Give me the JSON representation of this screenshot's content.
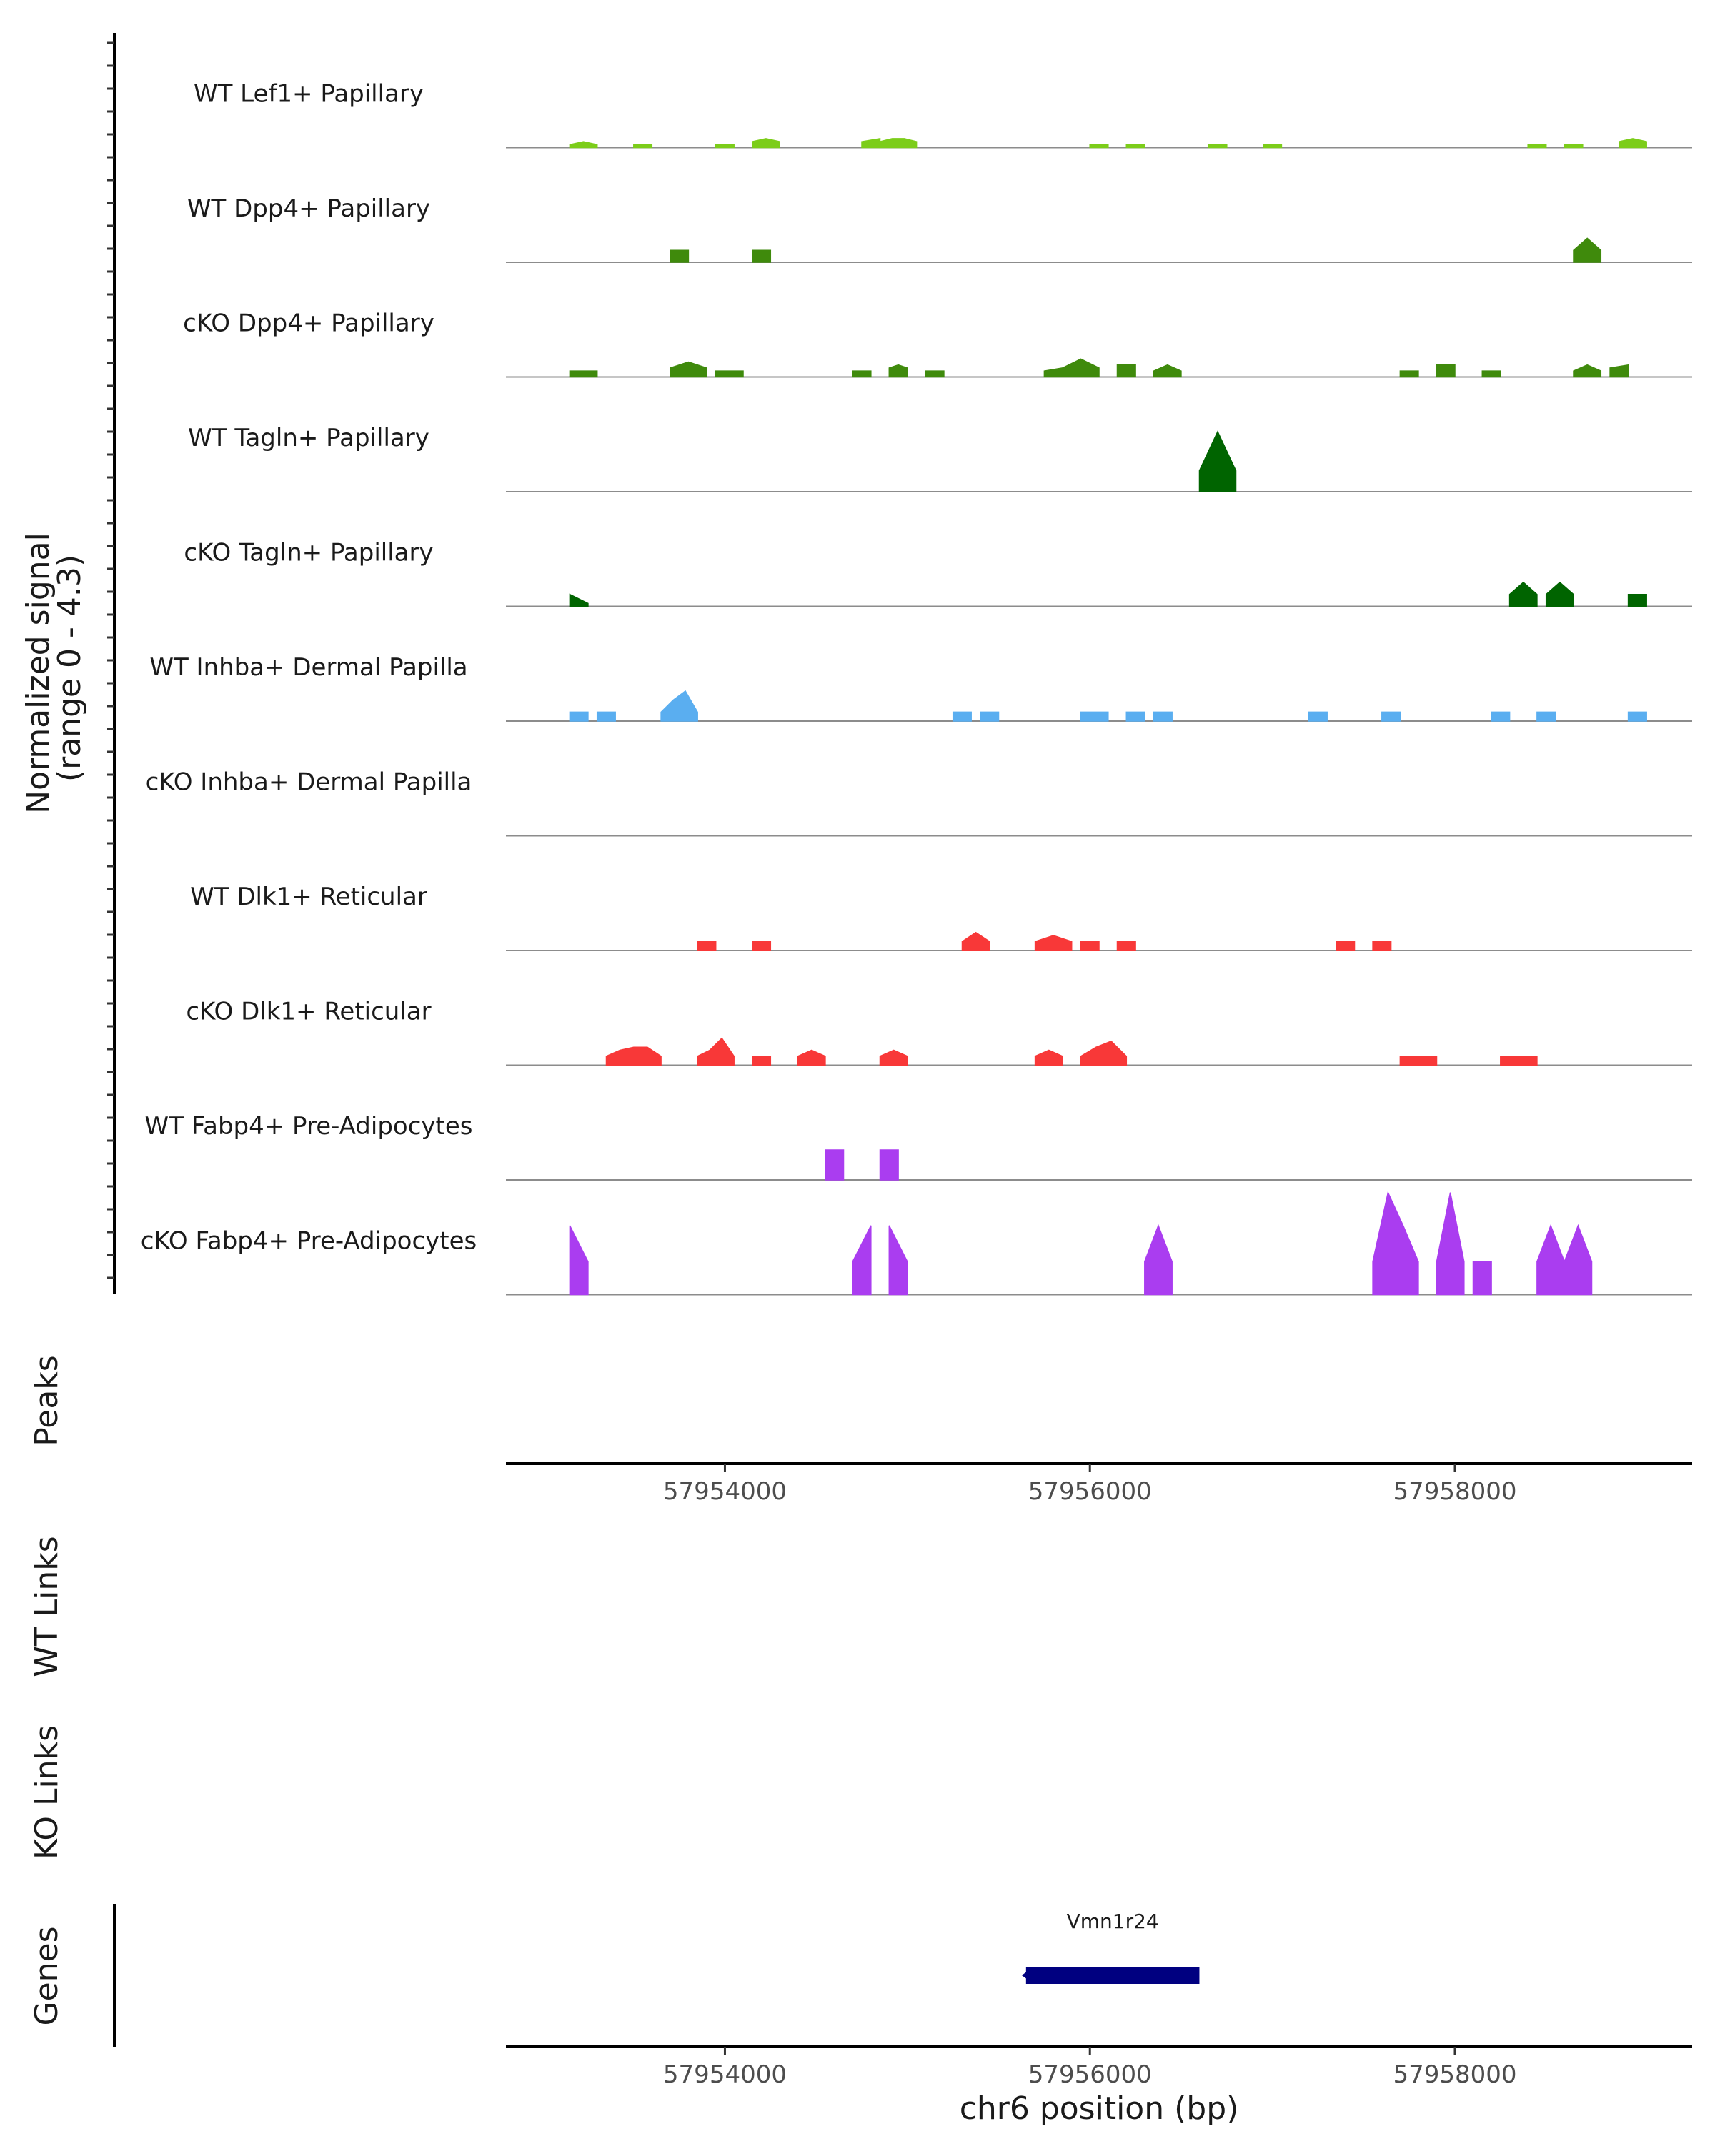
{
  "chart_data": {
    "type": "area",
    "ylabel_line1": "Normalized signal",
    "ylabel_line2": "(range 0 - 4.3)",
    "ylim": [
      0,
      4.3
    ],
    "xlim": [
      57952800,
      57959300
    ],
    "xlabel": "chr6 position (bp)",
    "xticks": [
      57954000,
      57956000,
      57958000
    ],
    "xtick_labels": [
      "57954000",
      "57956000",
      "57958000"
    ],
    "panel_labels": {
      "peaks": "Peaks",
      "wt_links": "WT Links",
      "ko_links": "KO Links",
      "genes": "Genes"
    },
    "genes": [
      {
        "name": "Vmn1r24",
        "start": 57955650,
        "end": 57956600,
        "strand": "-"
      }
    ],
    "series": [
      {
        "name": "WT Lef1+ Papillary",
        "color": "#7ccd1a",
        "regions": [
          {
            "start": 57953150,
            "end": 57953300,
            "values": [
              0.1,
              0.2,
              0.1
            ]
          },
          {
            "start": 57953500,
            "end": 57953600,
            "values": [
              0.1,
              0.1
            ]
          },
          {
            "start": 57953950,
            "end": 57954050,
            "values": [
              0.1,
              0.1
            ]
          },
          {
            "start": 57954150,
            "end": 57954300,
            "values": [
              0.2,
              0.3,
              0.2
            ]
          },
          {
            "start": 57954750,
            "end": 57954850,
            "values": [
              0.2,
              0.3
            ]
          },
          {
            "start": 57954850,
            "end": 57955050,
            "values": [
              0.2,
              0.3,
              0.3,
              0.2
            ]
          },
          {
            "start": 57956000,
            "end": 57956100,
            "values": [
              0.1,
              0.1
            ]
          },
          {
            "start": 57956200,
            "end": 57956300,
            "values": [
              0.1,
              0.1
            ]
          },
          {
            "start": 57956650,
            "end": 57956750,
            "values": [
              0.1,
              0.1
            ]
          },
          {
            "start": 57956950,
            "end": 57957050,
            "values": [
              0.1,
              0.1
            ]
          },
          {
            "start": 57958400,
            "end": 57958500,
            "values": [
              0.1,
              0.1
            ]
          },
          {
            "start": 57958600,
            "end": 57958700,
            "values": [
              0.1,
              0.1
            ]
          },
          {
            "start": 57958900,
            "end": 57959050,
            "values": [
              0.2,
              0.3,
              0.2
            ]
          }
        ]
      },
      {
        "name": "WT Dpp4+ Papillary",
        "color": "#3f8a0c",
        "regions": [
          {
            "start": 57953700,
            "end": 57953800,
            "values": [
              0.4,
              0.4
            ]
          },
          {
            "start": 57954150,
            "end": 57954250,
            "values": [
              0.4,
              0.4
            ]
          },
          {
            "start": 57958650,
            "end": 57958800,
            "values": [
              0.4,
              0.8,
              0.4
            ]
          }
        ]
      },
      {
        "name": "cKO Dpp4+ Papillary",
        "color": "#3f8a0c",
        "regions": [
          {
            "start": 57953150,
            "end": 57953300,
            "values": [
              0.2,
              0.2
            ]
          },
          {
            "start": 57953700,
            "end": 57953900,
            "values": [
              0.3,
              0.5,
              0.3
            ]
          },
          {
            "start": 57953950,
            "end": 57954100,
            "values": [
              0.2,
              0.2
            ]
          },
          {
            "start": 57954700,
            "end": 57954800,
            "values": [
              0.2,
              0.2
            ]
          },
          {
            "start": 57954900,
            "end": 57955000,
            "values": [
              0.3,
              0.4,
              0.3
            ]
          },
          {
            "start": 57955100,
            "end": 57955200,
            "values": [
              0.2,
              0.2
            ]
          },
          {
            "start": 57955750,
            "end": 57956050,
            "values": [
              0.2,
              0.3,
              0.6,
              0.3
            ]
          },
          {
            "start": 57956150,
            "end": 57956250,
            "values": [
              0.4,
              0.4
            ]
          },
          {
            "start": 57956350,
            "end": 57956500,
            "values": [
              0.2,
              0.4,
              0.2
            ]
          },
          {
            "start": 57957700,
            "end": 57957800,
            "values": [
              0.2,
              0.2
            ]
          },
          {
            "start": 57957900,
            "end": 57958000,
            "values": [
              0.4,
              0.4
            ]
          },
          {
            "start": 57958150,
            "end": 57958250,
            "values": [
              0.2,
              0.2
            ]
          },
          {
            "start": 57958650,
            "end": 57958800,
            "values": [
              0.2,
              0.4,
              0.2
            ]
          },
          {
            "start": 57958850,
            "end": 57958950,
            "values": [
              0.3,
              0.4
            ]
          }
        ]
      },
      {
        "name": "WT Tagln+ Papillary",
        "color": "#006400",
        "regions": [
          {
            "start": 57956600,
            "end": 57956800,
            "values": [
              0.7,
              2.0,
              0.7
            ]
          }
        ]
      },
      {
        "name": "cKO Tagln+ Papillary",
        "color": "#006400",
        "regions": [
          {
            "start": 57953150,
            "end": 57953250,
            "values": [
              0.4,
              0.1
            ]
          },
          {
            "start": 57958300,
            "end": 57958450,
            "values": [
              0.4,
              0.8,
              0.4
            ]
          },
          {
            "start": 57958500,
            "end": 57958650,
            "values": [
              0.4,
              0.8,
              0.4
            ]
          },
          {
            "start": 57958950,
            "end": 57959050,
            "values": [
              0.4,
              0.4
            ]
          }
        ]
      },
      {
        "name": "WT Inhba+ Dermal Papilla",
        "color": "#5aaef0",
        "regions": [
          {
            "start": 57953150,
            "end": 57953250,
            "values": [
              0.3,
              0.3
            ]
          },
          {
            "start": 57953300,
            "end": 57953400,
            "values": [
              0.3,
              0.3
            ]
          },
          {
            "start": 57953650,
            "end": 57953850,
            "values": [
              0.3,
              0.7,
              1.0,
              0.3
            ]
          },
          {
            "start": 57955250,
            "end": 57955350,
            "values": [
              0.3,
              0.3
            ]
          },
          {
            "start": 57955400,
            "end": 57955500,
            "values": [
              0.3,
              0.3
            ]
          },
          {
            "start": 57955950,
            "end": 57956100,
            "values": [
              0.3,
              0.3
            ]
          },
          {
            "start": 57956200,
            "end": 57956300,
            "values": [
              0.3,
              0.3
            ]
          },
          {
            "start": 57956350,
            "end": 57956450,
            "values": [
              0.3,
              0.3
            ]
          },
          {
            "start": 57957200,
            "end": 57957300,
            "values": [
              0.3,
              0.3
            ]
          },
          {
            "start": 57957600,
            "end": 57957700,
            "values": [
              0.3,
              0.3
            ]
          },
          {
            "start": 57958200,
            "end": 57958300,
            "values": [
              0.3,
              0.3
            ]
          },
          {
            "start": 57958450,
            "end": 57958550,
            "values": [
              0.3,
              0.3
            ]
          },
          {
            "start": 57958950,
            "end": 57959050,
            "values": [
              0.3,
              0.3
            ]
          }
        ]
      },
      {
        "name": "cKO Inhba+ Dermal Papilla",
        "color": "#5aaef0",
        "regions": []
      },
      {
        "name": "WT Dlk1+ Reticular",
        "color": "#f83838",
        "regions": [
          {
            "start": 57953850,
            "end": 57953950,
            "values": [
              0.3,
              0.3
            ]
          },
          {
            "start": 57954150,
            "end": 57954250,
            "values": [
              0.3,
              0.3
            ]
          },
          {
            "start": 57955300,
            "end": 57955450,
            "values": [
              0.3,
              0.6,
              0.3
            ]
          },
          {
            "start": 57955700,
            "end": 57955900,
            "values": [
              0.3,
              0.5,
              0.3
            ]
          },
          {
            "start": 57955950,
            "end": 57956050,
            "values": [
              0.3,
              0.3
            ]
          },
          {
            "start": 57956150,
            "end": 57956250,
            "values": [
              0.3,
              0.3
            ]
          },
          {
            "start": 57957350,
            "end": 57957450,
            "values": [
              0.3,
              0.3
            ]
          },
          {
            "start": 57957550,
            "end": 57957650,
            "values": [
              0.3,
              0.3
            ]
          }
        ]
      },
      {
        "name": "cKO Dlk1+ Reticular",
        "color": "#f83838",
        "regions": [
          {
            "start": 57953350,
            "end": 57953650,
            "values": [
              0.3,
              0.5,
              0.6,
              0.6,
              0.3
            ]
          },
          {
            "start": 57953850,
            "end": 57954050,
            "values": [
              0.3,
              0.5,
              0.9,
              0.3
            ]
          },
          {
            "start": 57954150,
            "end": 57954250,
            "values": [
              0.3,
              0.3
            ]
          },
          {
            "start": 57954400,
            "end": 57954550,
            "values": [
              0.3,
              0.5,
              0.3
            ]
          },
          {
            "start": 57954850,
            "end": 57955000,
            "values": [
              0.3,
              0.5,
              0.3
            ]
          },
          {
            "start": 57955700,
            "end": 57955850,
            "values": [
              0.3,
              0.5,
              0.3
            ]
          },
          {
            "start": 57955950,
            "end": 57956200,
            "values": [
              0.3,
              0.6,
              0.8,
              0.3
            ]
          },
          {
            "start": 57957700,
            "end": 57957900,
            "values": [
              0.3,
              0.3
            ]
          },
          {
            "start": 57958250,
            "end": 57958450,
            "values": [
              0.3,
              0.3
            ]
          }
        ]
      },
      {
        "name": "WT Fabp4+ Pre-Adipocytes",
        "color": "#aa3df0",
        "regions": [
          {
            "start": 57954550,
            "end": 57954650,
            "values": [
              1.0,
              1.0
            ]
          },
          {
            "start": 57954850,
            "end": 57954950,
            "values": [
              1.0,
              1.0
            ]
          }
        ]
      },
      {
        "name": "cKO Fabp4+ Pre-Adipocytes",
        "color": "#aa3df0",
        "regions": [
          {
            "start": 57953150,
            "end": 57953250,
            "values": [
              2.3,
              1.1
            ]
          },
          {
            "start": 57954700,
            "end": 57954800,
            "values": [
              1.1,
              2.3
            ]
          },
          {
            "start": 57954900,
            "end": 57955000,
            "values": [
              2.3,
              1.1
            ]
          },
          {
            "start": 57956300,
            "end": 57956450,
            "values": [
              1.1,
              2.3,
              1.1
            ]
          },
          {
            "start": 57957550,
            "end": 57957800,
            "values": [
              1.1,
              3.4,
              2.3,
              1.1
            ]
          },
          {
            "start": 57957900,
            "end": 57958050,
            "values": [
              1.1,
              3.4,
              1.1
            ]
          },
          {
            "start": 57958100,
            "end": 57958200,
            "values": [
              1.1,
              1.1
            ]
          },
          {
            "start": 57958450,
            "end": 57958750,
            "values": [
              1.1,
              2.3,
              1.1,
              2.3,
              1.1
            ]
          }
        ]
      }
    ]
  }
}
